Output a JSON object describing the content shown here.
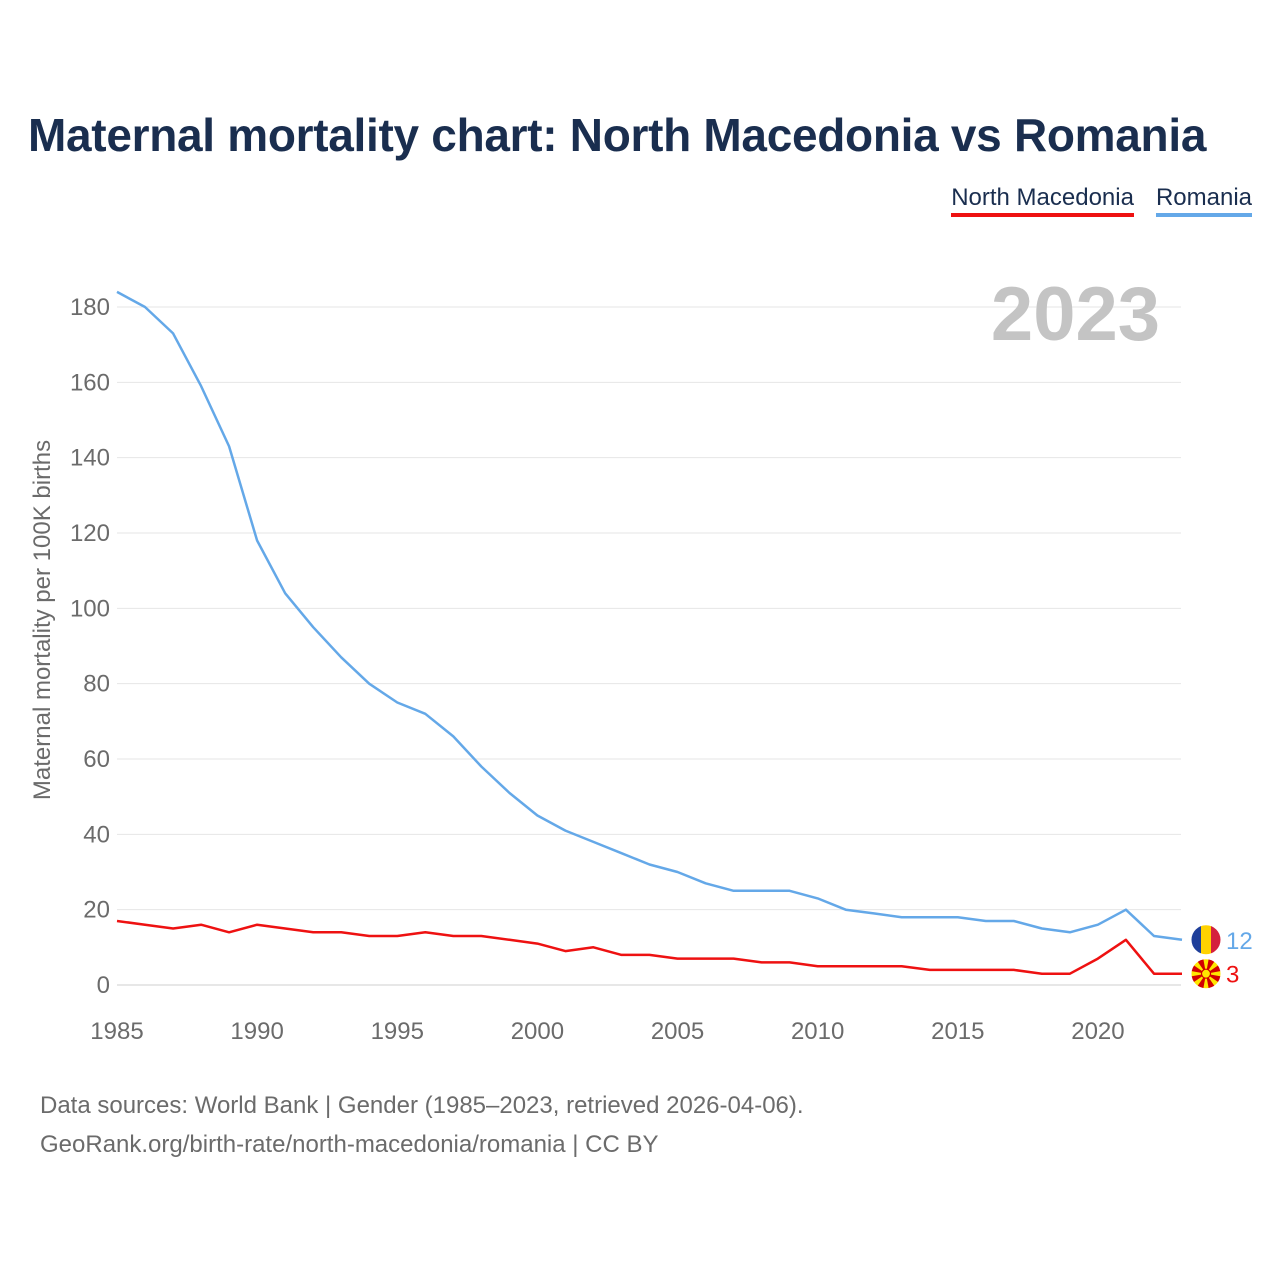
{
  "title": "Maternal mortality chart: North Macedonia vs Romania",
  "legend": [
    {
      "label": "North Macedonia",
      "color": "#ee1111"
    },
    {
      "label": "Romania",
      "color": "#64a8e8"
    }
  ],
  "year_label": "2023",
  "source": {
    "line1": "Data sources: World Bank | Gender (1985–2023, retrieved 2026-04-06).",
    "line2": "GeoRank.org/birth-rate/north-macedonia/romania | CC BY"
  },
  "chart_data": {
    "type": "line",
    "title": "Maternal mortality chart: North Macedonia vs Romania",
    "xlabel": "",
    "ylabel": "Maternal mortality per 100K births",
    "xlim": [
      1985,
      2023
    ],
    "ylim": [
      0,
      180
    ],
    "xticks": [
      1985,
      1990,
      1995,
      2000,
      2005,
      2010,
      2015,
      2020
    ],
    "yticks": [
      0,
      20,
      40,
      60,
      80,
      100,
      120,
      140,
      160,
      180
    ],
    "grid": true,
    "legend_position": "top-right",
    "x": [
      1985,
      1986,
      1987,
      1988,
      1989,
      1990,
      1991,
      1992,
      1993,
      1994,
      1995,
      1996,
      1997,
      1998,
      1999,
      2000,
      2001,
      2002,
      2003,
      2004,
      2005,
      2006,
      2007,
      2008,
      2009,
      2010,
      2011,
      2012,
      2013,
      2014,
      2015,
      2016,
      2017,
      2018,
      2019,
      2020,
      2021,
      2022,
      2023
    ],
    "series": [
      {
        "name": "North Macedonia",
        "color": "#ee1111",
        "end_label": "3",
        "flag": "north-macedonia-flag",
        "values": [
          17,
          16,
          15,
          16,
          14,
          16,
          15,
          14,
          14,
          13,
          13,
          14,
          13,
          13,
          12,
          11,
          9,
          10,
          8,
          8,
          7,
          7,
          7,
          6,
          6,
          5,
          5,
          5,
          5,
          4,
          4,
          4,
          4,
          3,
          3,
          7,
          12,
          3,
          3
        ]
      },
      {
        "name": "Romania",
        "color": "#64a8e8",
        "end_label": "12",
        "flag": "romania-flag",
        "values": [
          184,
          180,
          173,
          159,
          143,
          118,
          104,
          95,
          87,
          80,
          75,
          72,
          66,
          58,
          51,
          45,
          41,
          38,
          35,
          32,
          30,
          27,
          25,
          25,
          25,
          23,
          20,
          19,
          18,
          18,
          18,
          17,
          17,
          15,
          14,
          16,
          20,
          13,
          12
        ]
      }
    ]
  }
}
